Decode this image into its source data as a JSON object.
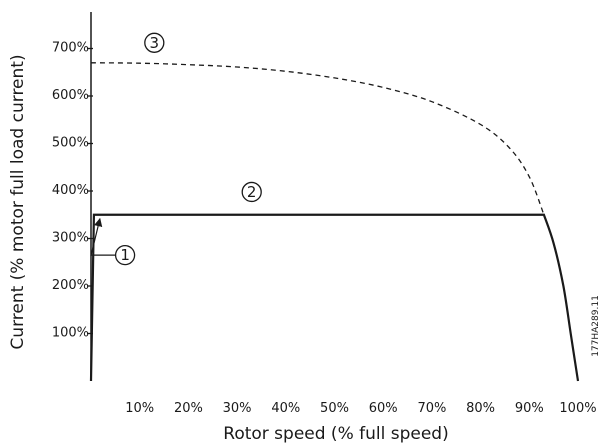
{
  "chart_data": {
    "type": "line",
    "xlabel": "Rotor speed (% full speed)",
    "ylabel": "Current (% motor full load current)",
    "xlim": [
      0,
      100
    ],
    "ylim": [
      0,
      750
    ],
    "x_ticks": [
      10,
      20,
      30,
      40,
      50,
      60,
      70,
      80,
      90,
      100
    ],
    "y_ticks": [
      100,
      200,
      300,
      400,
      500,
      600,
      700
    ],
    "x_tick_labels": [
      "10%",
      "20%",
      "30%",
      "40%",
      "50%",
      "60%",
      "70%",
      "80%",
      "90%",
      "100%"
    ],
    "y_tick_labels": [
      "100%",
      "200%",
      "300%",
      "400%",
      "500%",
      "600%",
      "700%"
    ],
    "grid": false,
    "series": [
      {
        "id": "3",
        "style": "dashed",
        "points": [
          [
            0,
            670
          ],
          [
            10,
            669
          ],
          [
            20,
            666
          ],
          [
            30,
            661
          ],
          [
            40,
            652
          ],
          [
            50,
            638
          ],
          [
            60,
            618
          ],
          [
            70,
            588
          ],
          [
            80,
            540
          ],
          [
            86,
            490
          ],
          [
            90,
            430
          ],
          [
            93,
            350
          ]
        ]
      },
      {
        "id": "2",
        "style": "solid",
        "points": [
          [
            0,
            0
          ],
          [
            0.6,
            350
          ],
          [
            93,
            350
          ],
          [
            95,
            290
          ],
          [
            97,
            200
          ],
          [
            98.5,
            100
          ],
          [
            100,
            0
          ]
        ]
      }
    ],
    "annotations": [
      {
        "label": "1",
        "x": 7,
        "y": 265,
        "arrow_to": [
          0.6,
          350
        ]
      },
      {
        "label": "2",
        "x": 33,
        "y": 398
      },
      {
        "label": "3",
        "x": 13,
        "y": 712
      }
    ],
    "figure_code": "177HA289.11"
  }
}
